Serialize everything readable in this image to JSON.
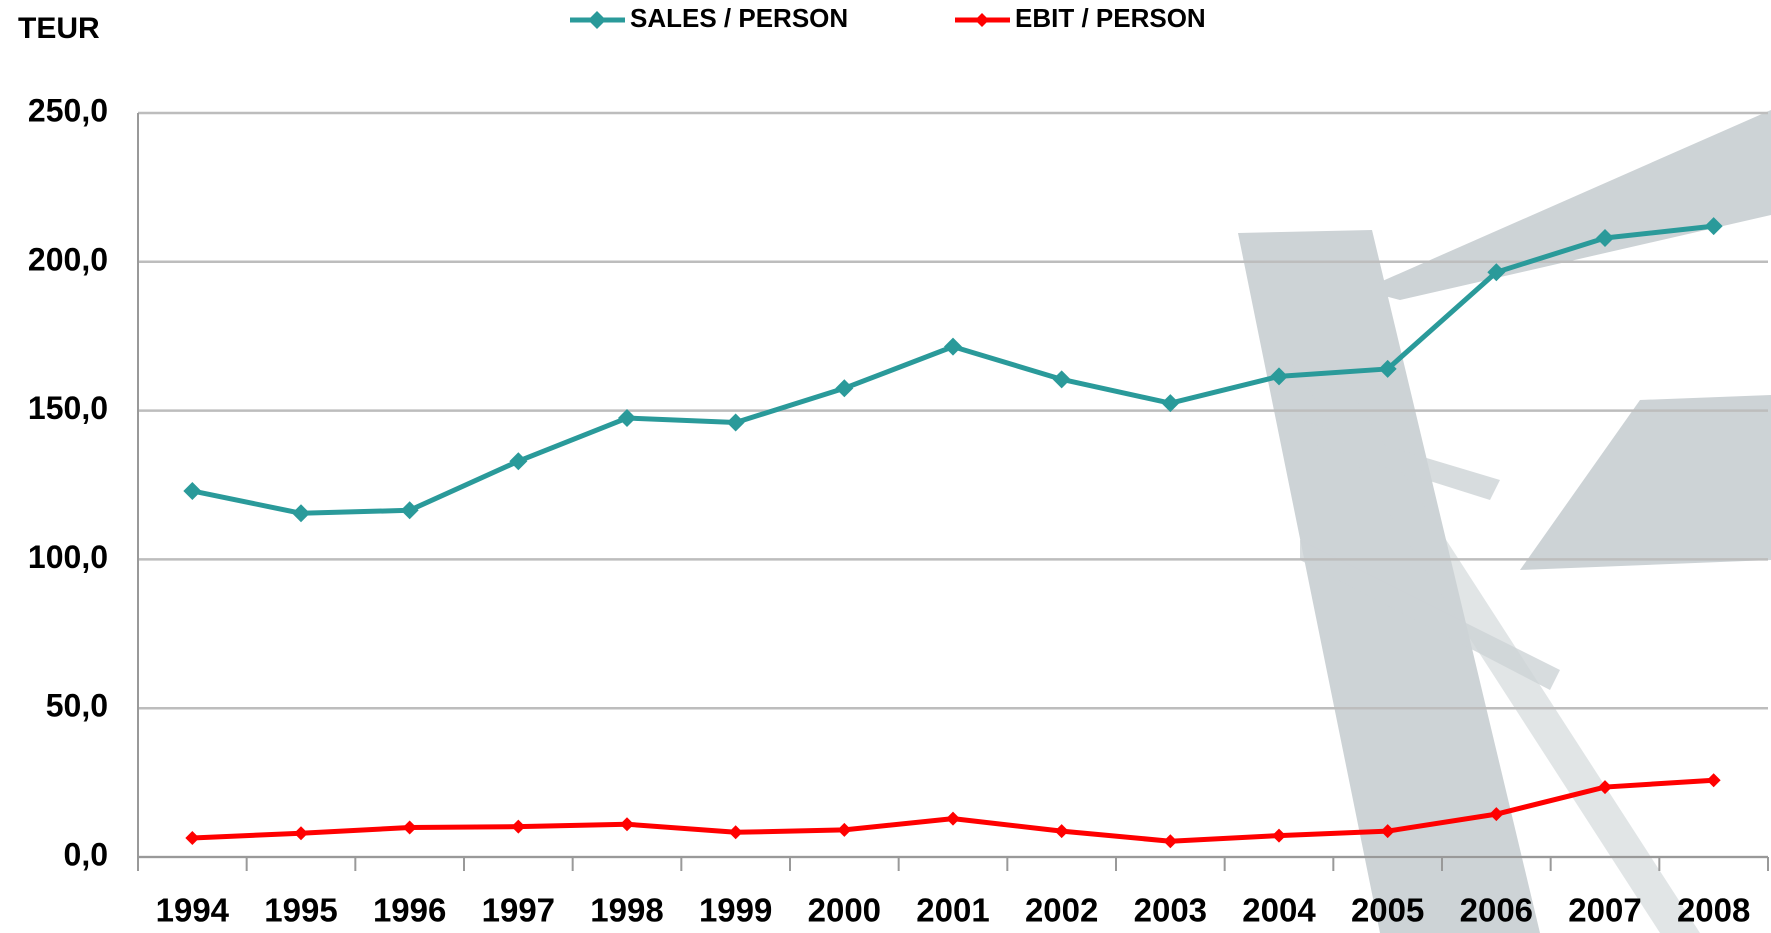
{
  "chart_data": {
    "type": "line",
    "y_axis_label": "TEUR",
    "categories": [
      "1994",
      "1995",
      "1996",
      "1997",
      "1998",
      "1999",
      "2000",
      "2001",
      "2002",
      "2003",
      "2004",
      "2005",
      "2006",
      "2007",
      "2008"
    ],
    "series": [
      {
        "name": "SALES / PERSON",
        "color": "#2a9a9a",
        "values": [
          123,
          115.5,
          116.5,
          133,
          147.5,
          146,
          157.5,
          171.5,
          160.5,
          152.5,
          161.5,
          164,
          196.5,
          208,
          212
        ]
      },
      {
        "name": "EBIT / PERSON",
        "color": "#ff0000",
        "values": [
          6.4,
          8,
          9.9,
          10.2,
          11,
          8.3,
          9.1,
          12.9,
          8.7,
          5.3,
          7.2,
          8.7,
          14.4,
          23.5,
          25.8
        ]
      }
    ],
    "ylim": [
      0,
      250
    ],
    "yticks": [
      {
        "value": 0,
        "label": "0,0"
      },
      {
        "value": 50,
        "label": "50,0"
      },
      {
        "value": 100,
        "label": "100,0"
      },
      {
        "value": 150,
        "label": "150,0"
      },
      {
        "value": 200,
        "label": "200,0"
      },
      {
        "value": 250,
        "label": "250,0"
      }
    ],
    "grid": true,
    "legend": "top"
  }
}
